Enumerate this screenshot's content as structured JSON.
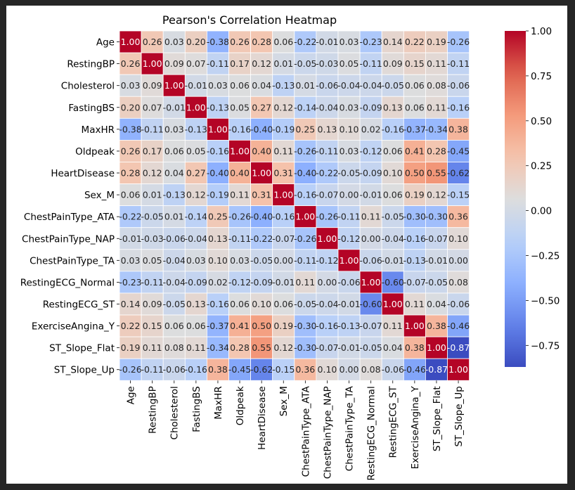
{
  "chart_data": {
    "type": "heatmap",
    "title": "Pearson's Correlation Heatmap",
    "xlabel": "",
    "ylabel": "",
    "labels": [
      "Age",
      "RestingBP",
      "Cholesterol",
      "FastingBS",
      "MaxHR",
      "Oldpeak",
      "HeartDisease",
      "Sex_M",
      "ChestPainType_ATA",
      "ChestPainType_NAP",
      "ChestPainType_TA",
      "RestingECG_Normal",
      "RestingECG_ST",
      "ExerciseAngina_Y",
      "ST_Slope_Flat",
      "ST_Slope_Up"
    ],
    "values": [
      [
        1.0,
        0.26,
        0.03,
        0.2,
        -0.38,
        0.26,
        0.28,
        0.06,
        -0.22,
        -0.01,
        0.03,
        -0.23,
        0.14,
        0.22,
        0.19,
        -0.26
      ],
      [
        0.26,
        1.0,
        0.09,
        0.07,
        -0.11,
        0.17,
        0.12,
        0.01,
        -0.05,
        -0.03,
        0.05,
        -0.11,
        0.09,
        0.15,
        0.11,
        -0.11
      ],
      [
        0.03,
        0.09,
        1.0,
        -0.01,
        0.03,
        0.06,
        0.04,
        -0.13,
        0.01,
        -0.06,
        -0.04,
        -0.04,
        -0.05,
        0.06,
        0.08,
        -0.06
      ],
      [
        0.2,
        0.07,
        -0.01,
        1.0,
        -0.13,
        0.05,
        0.27,
        0.12,
        -0.14,
        -0.04,
        0.03,
        -0.09,
        0.13,
        0.06,
        0.11,
        -0.16
      ],
      [
        -0.38,
        -0.11,
        0.03,
        -0.13,
        1.0,
        -0.16,
        -0.4,
        -0.19,
        0.25,
        0.13,
        0.1,
        0.02,
        -0.16,
        -0.37,
        -0.34,
        0.38
      ],
      [
        0.26,
        0.17,
        0.06,
        0.05,
        -0.16,
        1.0,
        0.4,
        0.11,
        -0.26,
        -0.11,
        0.03,
        -0.12,
        0.06,
        0.41,
        0.28,
        -0.45
      ],
      [
        0.28,
        0.12,
        0.04,
        0.27,
        -0.4,
        0.4,
        1.0,
        0.31,
        -0.4,
        -0.22,
        -0.05,
        -0.09,
        0.1,
        0.5,
        0.55,
        -0.62
      ],
      [
        0.06,
        0.01,
        -0.13,
        0.12,
        -0.19,
        0.11,
        0.31,
        1.0,
        -0.16,
        -0.07,
        -0.0,
        -0.01,
        0.06,
        0.19,
        0.12,
        -0.15
      ],
      [
        -0.22,
        -0.05,
        0.01,
        -0.14,
        0.25,
        -0.26,
        -0.4,
        -0.16,
        1.0,
        -0.26,
        -0.11,
        0.11,
        -0.05,
        -0.3,
        -0.3,
        0.36
      ],
      [
        -0.01,
        -0.03,
        -0.06,
        -0.04,
        0.13,
        -0.11,
        -0.22,
        -0.07,
        -0.26,
        1.0,
        -0.12,
        0.0,
        -0.04,
        -0.16,
        -0.07,
        0.1
      ],
      [
        0.03,
        0.05,
        -0.04,
        0.03,
        0.1,
        0.03,
        -0.05,
        -0.0,
        -0.11,
        -0.12,
        1.0,
        -0.06,
        -0.01,
        -0.13,
        -0.01,
        0.0
      ],
      [
        -0.23,
        -0.11,
        -0.04,
        -0.09,
        0.02,
        -0.12,
        -0.09,
        -0.01,
        0.11,
        0.0,
        -0.06,
        1.0,
        -0.6,
        -0.07,
        -0.05,
        0.08
      ],
      [
        0.14,
        0.09,
        -0.05,
        0.13,
        -0.16,
        0.06,
        0.1,
        0.06,
        -0.05,
        -0.04,
        -0.01,
        -0.6,
        1.0,
        0.11,
        0.04,
        -0.06
      ],
      [
        0.22,
        0.15,
        0.06,
        0.06,
        -0.37,
        0.41,
        0.5,
        0.19,
        -0.3,
        -0.16,
        -0.13,
        -0.07,
        0.11,
        1.0,
        0.38,
        -0.46
      ],
      [
        0.19,
        0.11,
        0.08,
        0.11,
        -0.34,
        0.28,
        0.55,
        0.12,
        -0.3,
        -0.07,
        -0.01,
        -0.05,
        0.04,
        0.38,
        1.0,
        -0.87
      ],
      [
        -0.26,
        -0.11,
        -0.06,
        -0.16,
        0.38,
        -0.45,
        -0.62,
        -0.15,
        0.36,
        0.1,
        0.0,
        0.08,
        -0.06,
        -0.46,
        -0.87,
        1.0
      ]
    ],
    "colormap": "coolwarm",
    "vmin": -0.87,
    "vmax": 1.0,
    "colorbar_ticks": [
      1.0,
      0.75,
      0.5,
      0.25,
      0.0,
      -0.25,
      -0.5,
      -0.75
    ],
    "colorbar_tick_labels": [
      "1.00",
      "0.75",
      "0.50",
      "0.25",
      "0.00",
      "−0.25",
      "−0.50",
      "−0.75"
    ],
    "annotations": true,
    "cell_border_color": "#ffffff"
  }
}
